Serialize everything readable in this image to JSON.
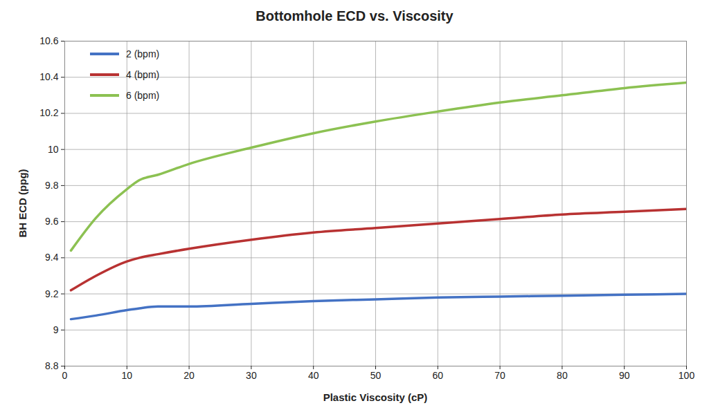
{
  "chart_data": {
    "type": "line",
    "title": "Bottomhole ECD vs. Viscosity",
    "x_label": "Plastic Viscosity (cP)",
    "y_label": "BH ECD (ppg)",
    "x": [
      1,
      5,
      10,
      12,
      15,
      20,
      30,
      40,
      50,
      60,
      70,
      80,
      90,
      100
    ],
    "series": [
      {
        "name": "2 (bpm)",
        "color": "#4472c4",
        "values": [
          9.06,
          9.08,
          9.11,
          9.12,
          9.13,
          9.13,
          9.145,
          9.16,
          9.17,
          9.18,
          9.185,
          9.19,
          9.195,
          9.2
        ]
      },
      {
        "name": "4 (bpm)",
        "color": "#b83232",
        "values": [
          9.22,
          9.3,
          9.38,
          9.4,
          9.42,
          9.45,
          9.5,
          9.54,
          9.565,
          9.59,
          9.615,
          9.64,
          9.655,
          9.67
        ]
      },
      {
        "name": "6 (bpm)",
        "color": "#8cc152",
        "values": [
          9.44,
          9.62,
          9.78,
          9.83,
          9.86,
          9.92,
          10.01,
          10.09,
          10.155,
          10.21,
          10.26,
          10.3,
          10.34,
          10.37
        ]
      }
    ],
    "xlim": [
      0,
      100
    ],
    "xticks": [
      0,
      10,
      20,
      30,
      40,
      50,
      60,
      70,
      80,
      90,
      100
    ],
    "ylim": [
      8.8,
      10.6
    ],
    "yticks": [
      8.8,
      9,
      9.2,
      9.4,
      9.6,
      9.8,
      10,
      10.2,
      10.4,
      10.6
    ],
    "grid": true,
    "legend": "top-left"
  }
}
